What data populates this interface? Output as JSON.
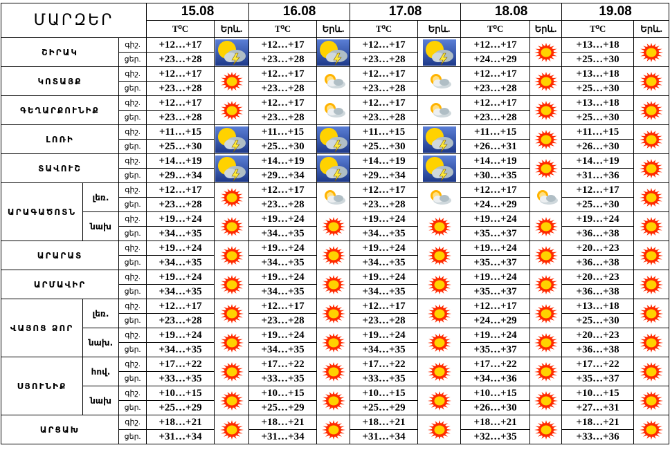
{
  "header": {
    "title": "ՄԱՐԶԵՐ",
    "temp_label": "T⁰C",
    "weather_label": "Երև.",
    "dates": [
      "15.08",
      "16.08",
      "17.08",
      "18.08",
      "19.08"
    ]
  },
  "rows": [
    {
      "region": "ՇԻՐԱԿ",
      "sub": "",
      "night_label": "գիշ.",
      "day_label": "ցեր.",
      "days": [
        {
          "night": "+12…+17",
          "day": "+23…+28",
          "icon": "storm-icon"
        },
        {
          "night": "+12…+17",
          "day": "+23…+28",
          "icon": "storm-icon"
        },
        {
          "night": "+12…+17",
          "day": "+23…+28",
          "icon": "storm-icon"
        },
        {
          "night": "+12…+17",
          "day": "+24…+29",
          "icon": "sun-icon"
        },
        {
          "night": "+13…+18",
          "day": "+25…+30",
          "icon": "sun-icon"
        }
      ]
    },
    {
      "region": "ԿՈՏԱՅՔ",
      "sub": "",
      "night_label": "գիշ.",
      "day_label": "ցեր.",
      "days": [
        {
          "night": "+12…+17",
          "day": "+23…+28",
          "icon": "sun-icon"
        },
        {
          "night": "+12…+17",
          "day": "+23…+28",
          "icon": "partly-cloudy-icon"
        },
        {
          "night": "+12…+17",
          "day": "+23…+28",
          "icon": "partly-cloudy-icon"
        },
        {
          "night": "+12…+17",
          "day": "+23…+28",
          "icon": "sun-icon"
        },
        {
          "night": "+13…+18",
          "day": "+25…+30",
          "icon": "sun-icon"
        }
      ]
    },
    {
      "region": "ԳԵՂԱՐՔՈՒՆԻՔ",
      "sub": "",
      "night_label": "գիշ.",
      "day_label": "ցեր.",
      "days": [
        {
          "night": "+12…+17",
          "day": "+23…+28",
          "icon": "sun-icon"
        },
        {
          "night": "+12…+17",
          "day": "+23…+28",
          "icon": "partly-cloudy-icon"
        },
        {
          "night": "+12…+17",
          "day": "+23…+28",
          "icon": "partly-cloudy-icon"
        },
        {
          "night": "+12…+17",
          "day": "+23…+28",
          "icon": "sun-icon"
        },
        {
          "night": "+13…+18",
          "day": "+25…+30",
          "icon": "sun-icon"
        }
      ]
    },
    {
      "region": "ԼՈՌԻ",
      "sub": "",
      "night_label": "գիշ.",
      "day_label": "ցեր.",
      "days": [
        {
          "night": "+11…+15",
          "day": "+25…+30",
          "icon": "storm-icon"
        },
        {
          "night": "+11…+15",
          "day": "+25…+30",
          "icon": "storm-icon"
        },
        {
          "night": "+11…+15",
          "day": "+25…+30",
          "icon": "storm-icon"
        },
        {
          "night": "+11…+15",
          "day": "+26…+31",
          "icon": "sun-icon"
        },
        {
          "night": "+11…+15",
          "day": "+26…+30",
          "icon": "sun-icon"
        }
      ]
    },
    {
      "region": "ՏԱՎՈՒՇ",
      "sub": "",
      "night_label": "գիշ.",
      "day_label": "ցեր.",
      "days": [
        {
          "night": "+14…+19",
          "day": "+29…+34",
          "icon": "storm-icon"
        },
        {
          "night": "+14…+19",
          "day": "+29…+34",
          "icon": "storm-icon"
        },
        {
          "night": "+14…+19",
          "day": "+29…+34",
          "icon": "storm-icon"
        },
        {
          "night": "+14…+19",
          "day": "+30…+35",
          "icon": "sun-icon"
        },
        {
          "night": "+14…+19",
          "day": "+31…+36",
          "icon": "sun-icon"
        }
      ]
    },
    {
      "region": "ԱՐԱԳԱԾՈՏՆ",
      "sub": "լեռ.",
      "night_label": "գիշ.",
      "day_label": "ցեր.",
      "days": [
        {
          "night": "+12…+17",
          "day": "+23…+28",
          "icon": "sun-icon"
        },
        {
          "night": "+12…+17",
          "day": "+23…+28",
          "icon": "partly-cloudy-icon"
        },
        {
          "night": "+12…+17",
          "day": "+23…+28",
          "icon": "partly-cloudy-icon"
        },
        {
          "night": "+12…+17",
          "day": "+24…+29",
          "icon": "partly-cloudy-icon"
        },
        {
          "night": "+12…+17",
          "day": "+25…+30",
          "icon": "sun-icon"
        }
      ]
    },
    {
      "region": "",
      "sub": "նախ",
      "night_label": "գիշ.",
      "day_label": "ցեր.",
      "days": [
        {
          "night": "+19…+24",
          "day": "+34…+35",
          "icon": "sun-icon"
        },
        {
          "night": "+19…+24",
          "day": "+34…+35",
          "icon": "sun-icon"
        },
        {
          "night": "+19…+24",
          "day": "+34…+35",
          "icon": "sun-icon"
        },
        {
          "night": "+19…+24",
          "day": "+35…+37",
          "icon": "sun-icon"
        },
        {
          "night": "+19…+24",
          "day": "+36…+38",
          "icon": "sun-icon"
        }
      ]
    },
    {
      "region": "ԱՐԱՐԱՏ",
      "sub": "",
      "night_label": "գիշ.",
      "day_label": "ցեր.",
      "days": [
        {
          "night": "+19…+24",
          "day": "+34…+35",
          "icon": "sun-icon"
        },
        {
          "night": "+19…+24",
          "day": "+34…+35",
          "icon": "sun-icon"
        },
        {
          "night": "+19…+24",
          "day": "+34…+35",
          "icon": "sun-icon"
        },
        {
          "night": "+19…+24",
          "day": "+35…+37",
          "icon": "sun-icon"
        },
        {
          "night": "+20…+23",
          "day": "+36…+38",
          "icon": "sun-icon"
        }
      ]
    },
    {
      "region": "ԱՐՄԱՎԻՐ",
      "sub": "",
      "night_label": "գիշ.",
      "day_label": "ցեր.",
      "days": [
        {
          "night": "+19…+24",
          "day": "+34…+35",
          "icon": "sun-icon"
        },
        {
          "night": "+19…+24",
          "day": "+34…+35",
          "icon": "sun-icon"
        },
        {
          "night": "+19…+24",
          "day": "+34…+35",
          "icon": "sun-icon"
        },
        {
          "night": "+19…+24",
          "day": "+35…+37",
          "icon": "sun-icon"
        },
        {
          "night": "+20…+23",
          "day": "+36…+38",
          "icon": "sun-icon"
        }
      ]
    },
    {
      "region": "ՎԱՅՈՑ ՁՈՐ",
      "sub": "լեռ.",
      "night_label": "գիշ.",
      "day_label": "ցեր.",
      "days": [
        {
          "night": "+12…+17",
          "day": "+23…+28",
          "icon": "sun-icon"
        },
        {
          "night": "+12…+17",
          "day": "+23…+28",
          "icon": "sun-icon"
        },
        {
          "night": "+12…+17",
          "day": "+23…+28",
          "icon": "sun-icon"
        },
        {
          "night": "+12…+17",
          "day": "+24…+29",
          "icon": "sun-icon"
        },
        {
          "night": "+13…+18",
          "day": "+25…+30",
          "icon": "sun-icon"
        }
      ]
    },
    {
      "region": "",
      "sub": "նախ.",
      "night_label": "գիշ.",
      "day_label": "ցեր.",
      "days": [
        {
          "night": "+19…+24",
          "day": "+34…+35",
          "icon": "sun-icon"
        },
        {
          "night": "+19…+24",
          "day": "+34…+35",
          "icon": "sun-icon"
        },
        {
          "night": "+19…+24",
          "day": "+34…+35",
          "icon": "sun-icon"
        },
        {
          "night": "+19…+24",
          "day": "+35…+37",
          "icon": "sun-icon"
        },
        {
          "night": "+20…+23",
          "day": "+36…+38",
          "icon": "sun-icon"
        }
      ]
    },
    {
      "region": "ՍՅՈՒՆԻՔ",
      "sub": "հով.",
      "night_label": "գիշ.",
      "day_label": "ցեր.",
      "days": [
        {
          "night": "+17…+22",
          "day": "+33…+35",
          "icon": "sun-icon"
        },
        {
          "night": "+17…+22",
          "day": "+33…+35",
          "icon": "sun-icon"
        },
        {
          "night": "+17…+22",
          "day": "+33…+35",
          "icon": "sun-icon"
        },
        {
          "night": "+17…+22",
          "day": "+34…+36",
          "icon": "sun-icon"
        },
        {
          "night": "+17…+22",
          "day": "+35…+37",
          "icon": "sun-icon"
        }
      ]
    },
    {
      "region": "",
      "sub": "նախ",
      "night_label": "գիշ.",
      "day_label": "ցեր.",
      "days": [
        {
          "night": "+10…+15",
          "day": "+25…+29",
          "icon": "sun-icon"
        },
        {
          "night": "+10…+15",
          "day": "+25…+29",
          "icon": "sun-icon"
        },
        {
          "night": "+10…+15",
          "day": "+25…+29",
          "icon": "sun-icon"
        },
        {
          "night": "+10…+15",
          "day": "+26…+30",
          "icon": "sun-icon"
        },
        {
          "night": "+10…+15",
          "day": "+27…+31",
          "icon": "sun-icon"
        }
      ]
    },
    {
      "region": "ԱՐՑԱԽ",
      "sub": "",
      "night_label": "գիշ.",
      "day_label": "ցեր.",
      "days": [
        {
          "night": "+18…+21",
          "day": "+31…+34",
          "icon": "sun-icon"
        },
        {
          "night": "+18…+21",
          "day": "+31…+34",
          "icon": "sun-icon"
        },
        {
          "night": "+18…+21",
          "day": "+31…+34",
          "icon": "sun-icon"
        },
        {
          "night": "+18…+21",
          "day": "+32…+35",
          "icon": "sun-icon"
        },
        {
          "night": "+18…+21",
          "day": "+33…+36",
          "icon": "sun-icon"
        }
      ]
    }
  ],
  "colors": {
    "sun": "#ff2a00",
    "sun_core": "#ffd200",
    "storm_bg": "#1e3a8a",
    "cloud": "#b0bec5"
  }
}
